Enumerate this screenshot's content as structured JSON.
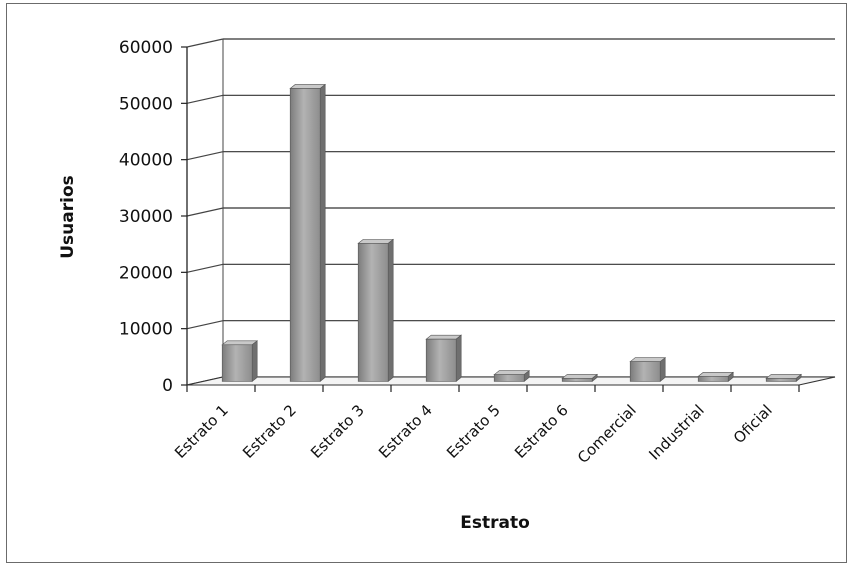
{
  "chart_data": {
    "type": "bar",
    "title": "",
    "xlabel": "Estrato",
    "ylabel": "Usuarios",
    "categories": [
      "Estrato 1",
      "Estrato 2",
      "Estrato 3",
      "Estrato 4",
      "Estrato 5",
      "Estrato 6",
      "Comercial",
      "Industrial",
      "Oficial"
    ],
    "values": [
      6500,
      52000,
      24500,
      7500,
      1200,
      400,
      3500,
      900,
      300
    ],
    "ylim": [
      0,
      60000
    ],
    "yticks": [
      "0",
      "10000",
      "20000",
      "30000",
      "40000",
      "50000",
      "60000"
    ],
    "grid": true,
    "style": "3d-column",
    "bar_color": "#9a9a9a"
  }
}
